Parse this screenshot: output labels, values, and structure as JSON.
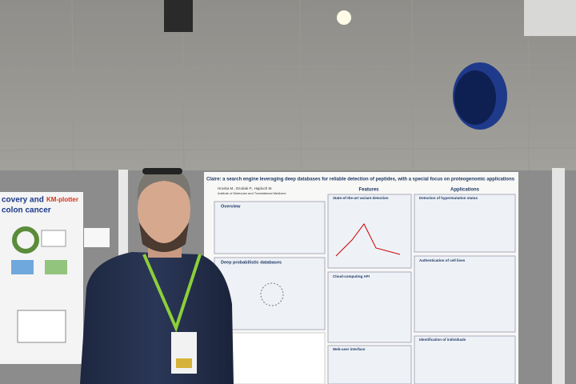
{
  "left_poster": {
    "title_line1": "covery and",
    "title_line2": "colon cancer",
    "logo": "KM-plotter"
  },
  "poster": {
    "title": "Claire: a search engine leveraging deep databases for reliable detection of peptides, with a special focus on proteogenomic applications",
    "authors": "Hruska M., Dzubak P., Hajduch M.",
    "affiliation": "Institute of Molecular and Translational Medicine",
    "sections": [
      "Overview",
      "Deep probabilistic databases"
    ],
    "features": {
      "header": "Features",
      "items": [
        "State-of-the-art variant detection",
        "Cloud-computing API",
        "Web-user interface"
      ]
    },
    "applications": {
      "header": "Applications",
      "items": [
        "Detection of hypermutation status",
        "Authentication of cell lines",
        "Identification of individuals"
      ]
    }
  }
}
